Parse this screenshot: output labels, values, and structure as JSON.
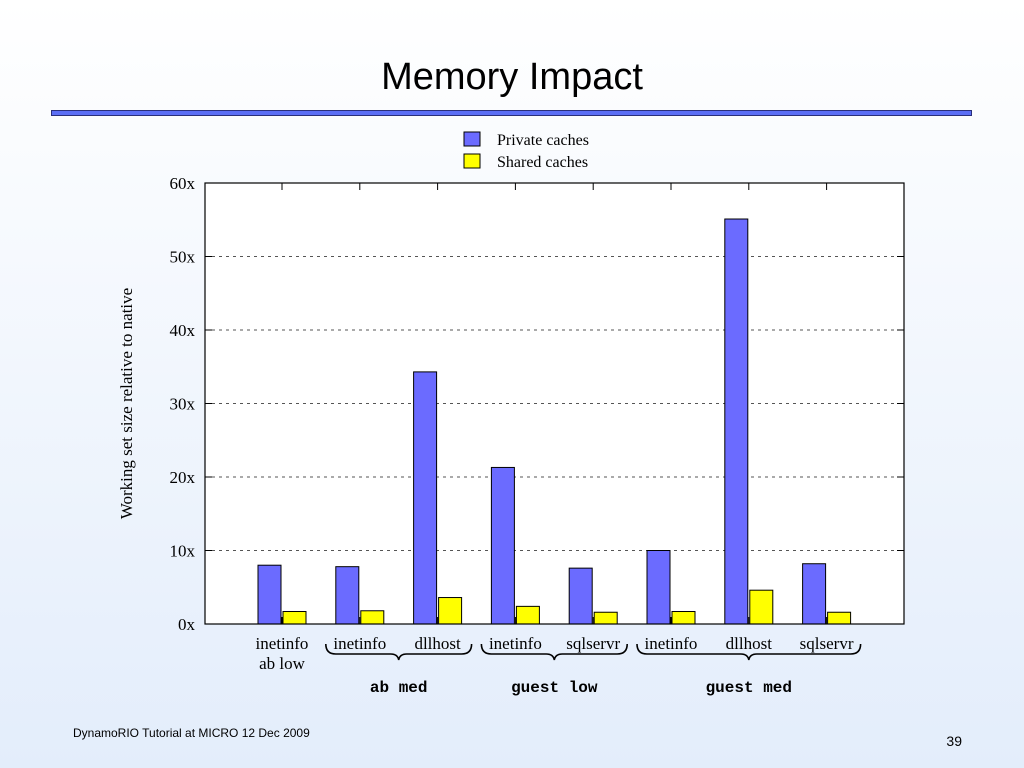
{
  "slide": {
    "title": "Memory Impact",
    "footer": "DynamoRIO Tutorial at MICRO 12 Dec 2009",
    "page_number": "39"
  },
  "colors": {
    "private": "#6b6bff",
    "shared": "#ffff00",
    "accent_rule": "#5b6ef5"
  },
  "chart_data": {
    "type": "bar",
    "ylabel": "Working set size relative to native",
    "ylim": [
      0,
      60
    ],
    "yticks": [
      "0x",
      "10x",
      "20x",
      "30x",
      "40x",
      "50x",
      "60x"
    ],
    "grid": "dashed horizontal",
    "legend_position": "top",
    "categories": [
      [
        "inetinfo",
        "ab low"
      ],
      [
        "inetinfo"
      ],
      [
        "dllhost"
      ],
      [
        "inetinfo"
      ],
      [
        "sqlservr"
      ],
      [
        "inetinfo"
      ],
      [
        "dllhost"
      ],
      [
        "sqlservr"
      ]
    ],
    "series": [
      {
        "name": "Private caches",
        "values": [
          8,
          7.8,
          34.3,
          21.3,
          7.6,
          10,
          55.1,
          8.2
        ]
      },
      {
        "name": "Shared caches",
        "values": [
          1.7,
          1.8,
          3.6,
          2.4,
          1.6,
          1.7,
          4.6,
          1.6
        ]
      }
    ],
    "groups": [
      {
        "label": "ab med",
        "from": 1,
        "to": 2
      },
      {
        "label": "guest low",
        "from": 3,
        "to": 4
      },
      {
        "label": "guest med",
        "from": 5,
        "to": 7
      }
    ]
  }
}
